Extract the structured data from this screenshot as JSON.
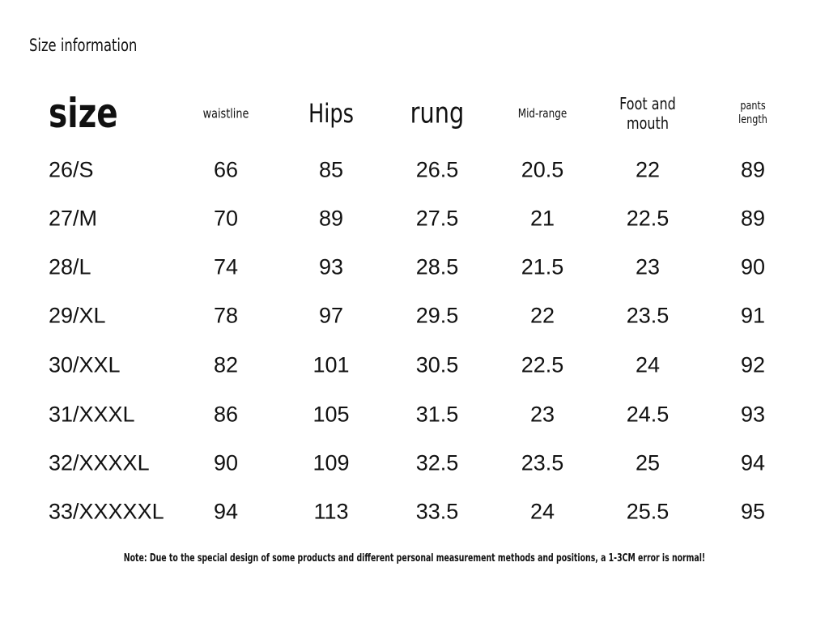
{
  "title": "Size information",
  "table": {
    "headers": [
      "size",
      "waistline",
      "Hips",
      "rung",
      "Mid-range",
      "Foot and mouth",
      "pants length"
    ],
    "rows": [
      [
        "26/S",
        "66",
        "85",
        "26.5",
        "20.5",
        "22",
        "89"
      ],
      [
        "27/M",
        "70",
        "89",
        "27.5",
        "21",
        "22.5",
        "89"
      ],
      [
        "28/L",
        "74",
        "93",
        "28.5",
        "21.5",
        "23",
        "90"
      ],
      [
        "29/XL",
        "78",
        "97",
        "29.5",
        "22",
        "23.5",
        "91"
      ],
      [
        "30/XXL",
        "82",
        "101",
        "30.5",
        "22.5",
        "24",
        "92"
      ],
      [
        "31/XXXL",
        "86",
        "105",
        "31.5",
        "23",
        "24.5",
        "93"
      ],
      [
        "32/XXXXL",
        "90",
        "109",
        "32.5",
        "23.5",
        "25",
        "94"
      ],
      [
        "33/XXXXXL",
        "94",
        "113",
        "33.5",
        "24",
        "25.5",
        "95"
      ]
    ]
  },
  "note": "Note: Due to the special design of some products and different personal measurement methods and positions, a 1-3CM error is normal!"
}
